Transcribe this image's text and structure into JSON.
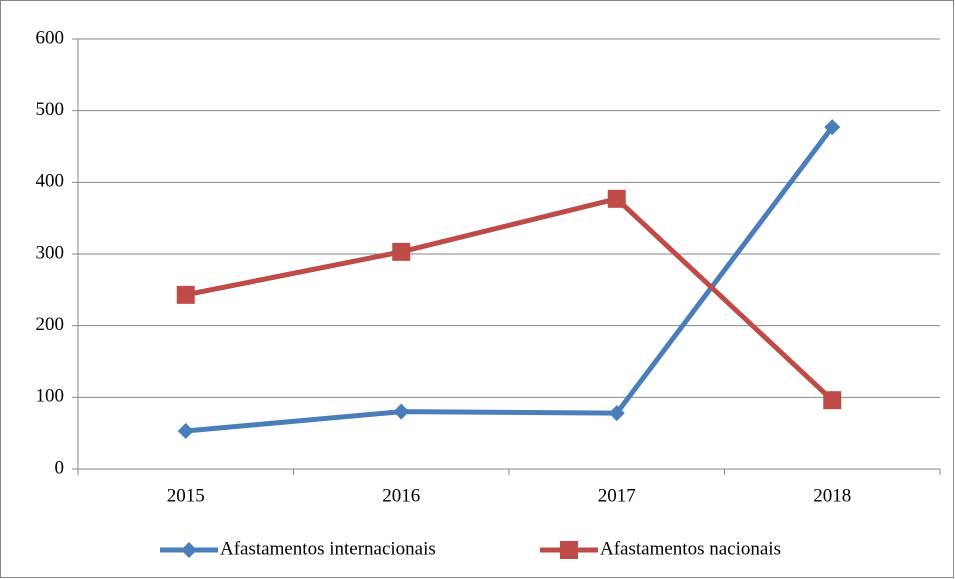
{
  "chart_data": {
    "type": "line",
    "categories": [
      "2015",
      "2016",
      "2017",
      "2018"
    ],
    "series": [
      {
        "name": "Afastamentos internacionais",
        "color": "#4a7ebb",
        "marker": "diamond",
        "values": [
          53,
          80,
          78,
          477
        ]
      },
      {
        "name": "Afastamentos nacionais",
        "color": "#be4b48",
        "marker": "square",
        "values": [
          243,
          303,
          377,
          96
        ]
      }
    ],
    "ylim": [
      0,
      600
    ],
    "yticks": [
      0,
      100,
      200,
      300,
      400,
      500,
      600
    ],
    "grid": true,
    "legend": "bottom"
  }
}
